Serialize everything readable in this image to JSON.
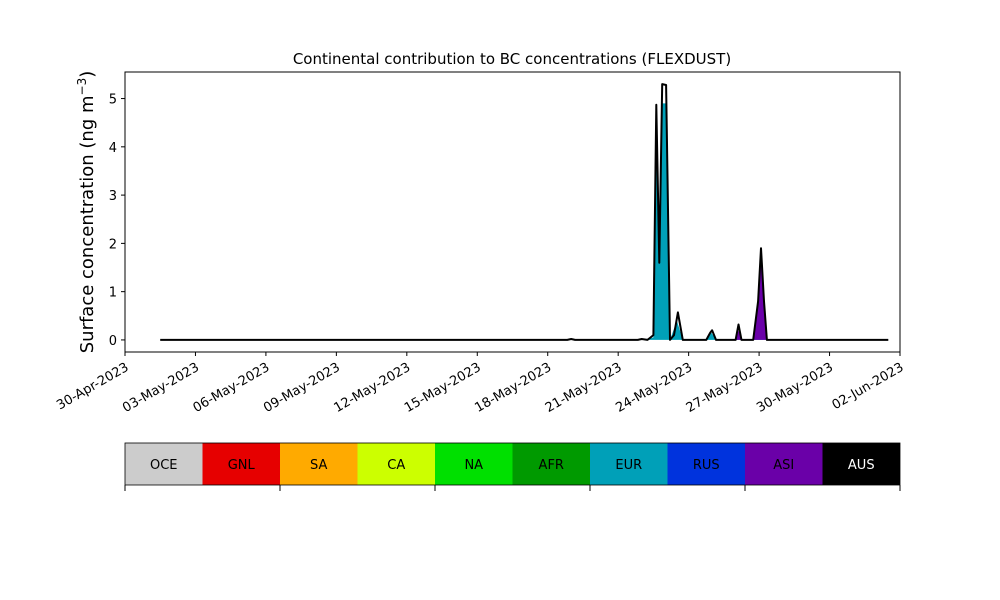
{
  "chart_data": {
    "type": "area",
    "title": "Continental contribution to BC concentrations (FLEXDUST)",
    "ylabel": "Surface concentration (ng m",
    "ylabel_sup": "−3",
    "ylabel_close": ")",
    "xlabel": "",
    "ylim": [
      -0.25,
      5.55
    ],
    "yticks": [
      0,
      1,
      2,
      3,
      4,
      5
    ],
    "xlim": [
      "2023-04-30",
      "2023-06-02"
    ],
    "xticks": [
      "30-Apr-2023",
      "03-May-2023",
      "06-May-2023",
      "09-May-2023",
      "12-May-2023",
      "15-May-2023",
      "18-May-2023",
      "21-May-2023",
      "24-May-2023",
      "27-May-2023",
      "30-May-2023",
      "02-Jun-2023"
    ],
    "grid": false,
    "data_range": [
      "2023-05-01 12:00",
      "2023-06-01 12:00"
    ],
    "series": [
      {
        "name": "EUR",
        "color": "#00a0b8",
        "points": [
          [
            "2023-05-22 00:00",
            0
          ],
          [
            "2023-05-22 12:00",
            0.05
          ],
          [
            "2023-05-22 15:00",
            4.6
          ],
          [
            "2023-05-22 18:00",
            1.9
          ],
          [
            "2023-05-22 21:00",
            4.9
          ],
          [
            "2023-05-23 01:00",
            4.9
          ],
          [
            "2023-05-23 05:00",
            0
          ],
          [
            "2023-05-23 12:00",
            0.4
          ],
          [
            "2023-05-23 18:00",
            0
          ],
          [
            "2023-05-24 18:00",
            0
          ],
          [
            "2023-05-24 23:00",
            0.16
          ],
          [
            "2023-05-25 04:00",
            0
          ],
          [
            "2023-05-26 00:00",
            0
          ],
          [
            "2023-05-26 02:00",
            0.1
          ],
          [
            "2023-05-26 06:00",
            0
          ],
          [
            "2023-05-26 18:00",
            0
          ],
          [
            "2023-05-27 02:00",
            0.4
          ],
          [
            "2023-05-27 08:00",
            0
          ]
        ]
      },
      {
        "name": "ASI",
        "color": "#6a00a8",
        "points": [
          [
            "2023-05-26 00:00",
            0
          ],
          [
            "2023-05-26 03:00",
            0.2
          ],
          [
            "2023-05-26 06:00",
            0
          ],
          [
            "2023-05-26 18:00",
            0
          ],
          [
            "2023-05-26 23:00",
            0.8
          ],
          [
            "2023-05-27 02:00",
            1.75
          ],
          [
            "2023-05-27 05:00",
            0.8
          ],
          [
            "2023-05-27 08:00",
            0
          ]
        ]
      }
    ],
    "total": [
      [
        "2023-05-01 12:00",
        0
      ],
      [
        "2023-05-18 20:00",
        0
      ],
      [
        "2023-05-19 00:00",
        0.02
      ],
      [
        "2023-05-19 04:00",
        0
      ],
      [
        "2023-05-21 20:00",
        0
      ],
      [
        "2023-05-22 00:00",
        0.02
      ],
      [
        "2023-05-22 06:00",
        0
      ],
      [
        "2023-05-22 12:00",
        0.1
      ],
      [
        "2023-05-22 15:00",
        4.87
      ],
      [
        "2023-05-22 18:00",
        1.6
      ],
      [
        "2023-05-22 21:00",
        5.3
      ],
      [
        "2023-05-23 01:00",
        5.28
      ],
      [
        "2023-05-23 05:00",
        0
      ],
      [
        "2023-05-23 09:00",
        0.1
      ],
      [
        "2023-05-23 13:00",
        0.57
      ],
      [
        "2023-05-23 18:00",
        0
      ],
      [
        "2023-05-24 18:00",
        0
      ],
      [
        "2023-05-24 22:00",
        0.15
      ],
      [
        "2023-05-25 00:00",
        0.2
      ],
      [
        "2023-05-25 04:00",
        0
      ],
      [
        "2023-05-26 00:00",
        0
      ],
      [
        "2023-05-26 03:00",
        0.32
      ],
      [
        "2023-05-26 06:00",
        0
      ],
      [
        "2023-05-26 18:00",
        0
      ],
      [
        "2023-05-26 23:00",
        0.8
      ],
      [
        "2023-05-27 02:00",
        1.9
      ],
      [
        "2023-05-27 05:00",
        0.8
      ],
      [
        "2023-05-27 08:00",
        0
      ],
      [
        "2023-06-01 12:00",
        0
      ]
    ],
    "legend": {
      "placement": "bottom",
      "entries": [
        {
          "label": "OCE",
          "color": "#cccccc",
          "text_color": "#000000"
        },
        {
          "label": "GNL",
          "color": "#e60000",
          "text_color": "#000000"
        },
        {
          "label": "SA",
          "color": "#ffaa00",
          "text_color": "#000000"
        },
        {
          "label": "CA",
          "color": "#ccff00",
          "text_color": "#000000"
        },
        {
          "label": "NA",
          "color": "#00e000",
          "text_color": "#000000"
        },
        {
          "label": "AFR",
          "color": "#009a00",
          "text_color": "#000000"
        },
        {
          "label": "EUR",
          "color": "#00a0b8",
          "text_color": "#000000"
        },
        {
          "label": "RUS",
          "color": "#0033dd",
          "text_color": "#000000"
        },
        {
          "label": "ASI",
          "color": "#6a00a8",
          "text_color": "#000000"
        },
        {
          "label": "AUS",
          "color": "#000000",
          "text_color": "#ffffff"
        }
      ]
    }
  }
}
